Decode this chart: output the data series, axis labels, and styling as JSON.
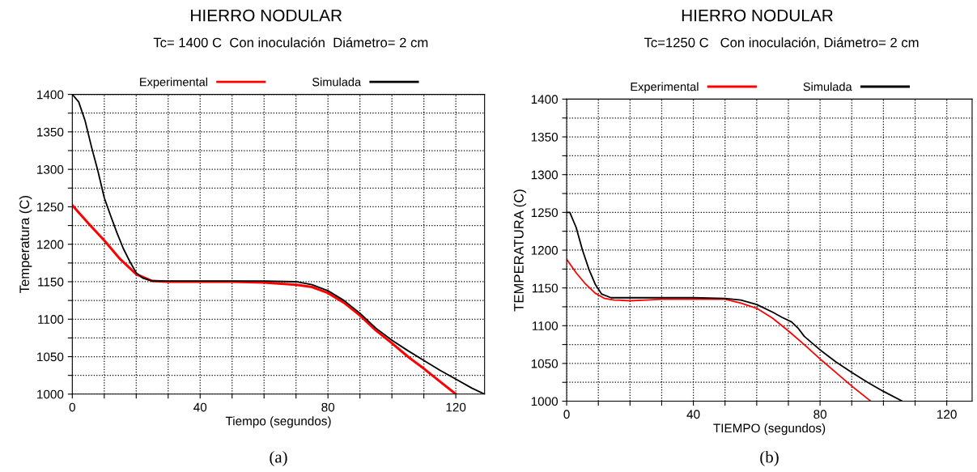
{
  "chart_data": [
    {
      "type": "line",
      "title": "HIERRO NODULAR",
      "subtitle": "Tc= 1400 C  Con inoculación  Diámetro= 2 cm",
      "xlabel": "Tiempo (segundos)",
      "ylabel": "Temperatura (C)",
      "xlim": [
        0,
        129
      ],
      "xticks": [
        0,
        {
          "value": 10,
          "label": null
        },
        {
          "value": 20,
          "label": null
        },
        {
          "value": 30,
          "label": null
        },
        40,
        {
          "value": 50,
          "label": null
        },
        {
          "value": 60,
          "label": null
        },
        {
          "value": 70,
          "label": null
        },
        80,
        {
          "value": 90,
          "label": null
        },
        {
          "value": 100,
          "label": null
        },
        {
          "value": 110,
          "label": null
        },
        120
      ],
      "ylim": [
        1000,
        1400
      ],
      "yticks": [
        1000,
        {
          "value": 1025,
          "label": null
        },
        1050,
        {
          "value": 1075,
          "label": null
        },
        1100,
        {
          "value": 1125,
          "label": null
        },
        1150,
        {
          "value": 1175,
          "label": null
        },
        1200,
        {
          "value": 1225,
          "label": null
        },
        1250,
        {
          "value": 1275,
          "label": null
        },
        1300,
        {
          "value": 1325,
          "label": null
        },
        1350,
        {
          "value": 1375,
          "label": null
        },
        1400
      ],
      "grid": true,
      "legend": "top",
      "annotations": [
        "(a)"
      ],
      "series": [
        {
          "name": "Experimental",
          "color": "#ff0000",
          "x": [
            0,
            5,
            10,
            15,
            20,
            25,
            30,
            40,
            50,
            60,
            70,
            75,
            80,
            85,
            90,
            95,
            100,
            105,
            110,
            115,
            120
          ],
          "values": [
            1252,
            1228,
            1205,
            1180,
            1160,
            1151,
            1150,
            1150,
            1150,
            1149,
            1146,
            1143,
            1135,
            1122,
            1105,
            1085,
            1068,
            1050,
            1034,
            1017,
            1000
          ]
        },
        {
          "name": "Simulada",
          "color": "#000000",
          "x": [
            0,
            2,
            4,
            6,
            8,
            10,
            12,
            14,
            16,
            18,
            20,
            22,
            25,
            30,
            40,
            50,
            60,
            70,
            75,
            80,
            85,
            90,
            95,
            100,
            105,
            110,
            115,
            120,
            125,
            129
          ],
          "values": [
            1400,
            1390,
            1365,
            1330,
            1298,
            1262,
            1238,
            1215,
            1194,
            1177,
            1162,
            1155,
            1151,
            1151,
            1151,
            1151,
            1151,
            1150,
            1146,
            1138,
            1125,
            1108,
            1088,
            1072,
            1058,
            1045,
            1032,
            1020,
            1008,
            1000
          ]
        }
      ]
    },
    {
      "type": "line",
      "title": "HIERRO NODULAR",
      "subtitle": "Tc=1250 C   Con inoculación, Diámetro= 2 cm",
      "xlabel": "TIEMPO (segundos)",
      "ylabel": "TEMPERATURA (C)",
      "xlim": [
        0,
        128
      ],
      "xticks": [
        0,
        {
          "value": 10,
          "label": null
        },
        {
          "value": 20,
          "label": null
        },
        {
          "value": 30,
          "label": null
        },
        40,
        {
          "value": 50,
          "label": null
        },
        {
          "value": 60,
          "label": null
        },
        {
          "value": 70,
          "label": null
        },
        80,
        {
          "value": 90,
          "label": null
        },
        {
          "value": 100,
          "label": null
        },
        {
          "value": 110,
          "label": null
        },
        120
      ],
      "ylim": [
        1000,
        1400
      ],
      "yticks": [
        1000,
        {
          "value": 1025,
          "label": null
        },
        1050,
        {
          "value": 1075,
          "label": null
        },
        1100,
        {
          "value": 1125,
          "label": null
        },
        1150,
        {
          "value": 1175,
          "label": null
        },
        1200,
        {
          "value": 1225,
          "label": null
        },
        1250,
        {
          "value": 1275,
          "label": null
        },
        1300,
        {
          "value": 1325,
          "label": null
        },
        1350,
        {
          "value": 1375,
          "label": null
        },
        1400
      ],
      "grid": true,
      "legend": "top",
      "annotations": [
        "(b)"
      ],
      "series": [
        {
          "name": "Experimental",
          "color": "#ff0000",
          "x": [
            0,
            3,
            6,
            9,
            12,
            15,
            20,
            25,
            30,
            40,
            50,
            55,
            60,
            65,
            70,
            75,
            80,
            85,
            90,
            96
          ],
          "values": [
            1188,
            1170,
            1155,
            1143,
            1136,
            1134,
            1133,
            1134,
            1135,
            1135,
            1135,
            1130,
            1123,
            1110,
            1093,
            1075,
            1056,
            1038,
            1020,
            1000
          ]
        },
        {
          "name": "Simulada",
          "color": "#000000",
          "x": [
            0,
            1,
            3,
            5,
            7,
            9,
            11,
            14,
            20,
            30,
            40,
            50,
            55,
            60,
            65,
            68,
            71,
            73,
            75,
            80,
            85,
            90,
            95,
            100,
            106
          ],
          "values": [
            1250,
            1250,
            1230,
            1200,
            1175,
            1155,
            1142,
            1137,
            1137,
            1137,
            1137,
            1136,
            1134,
            1128,
            1118,
            1111,
            1105,
            1097,
            1086,
            1068,
            1052,
            1038,
            1025,
            1013,
            1000
          ]
        }
      ]
    }
  ]
}
